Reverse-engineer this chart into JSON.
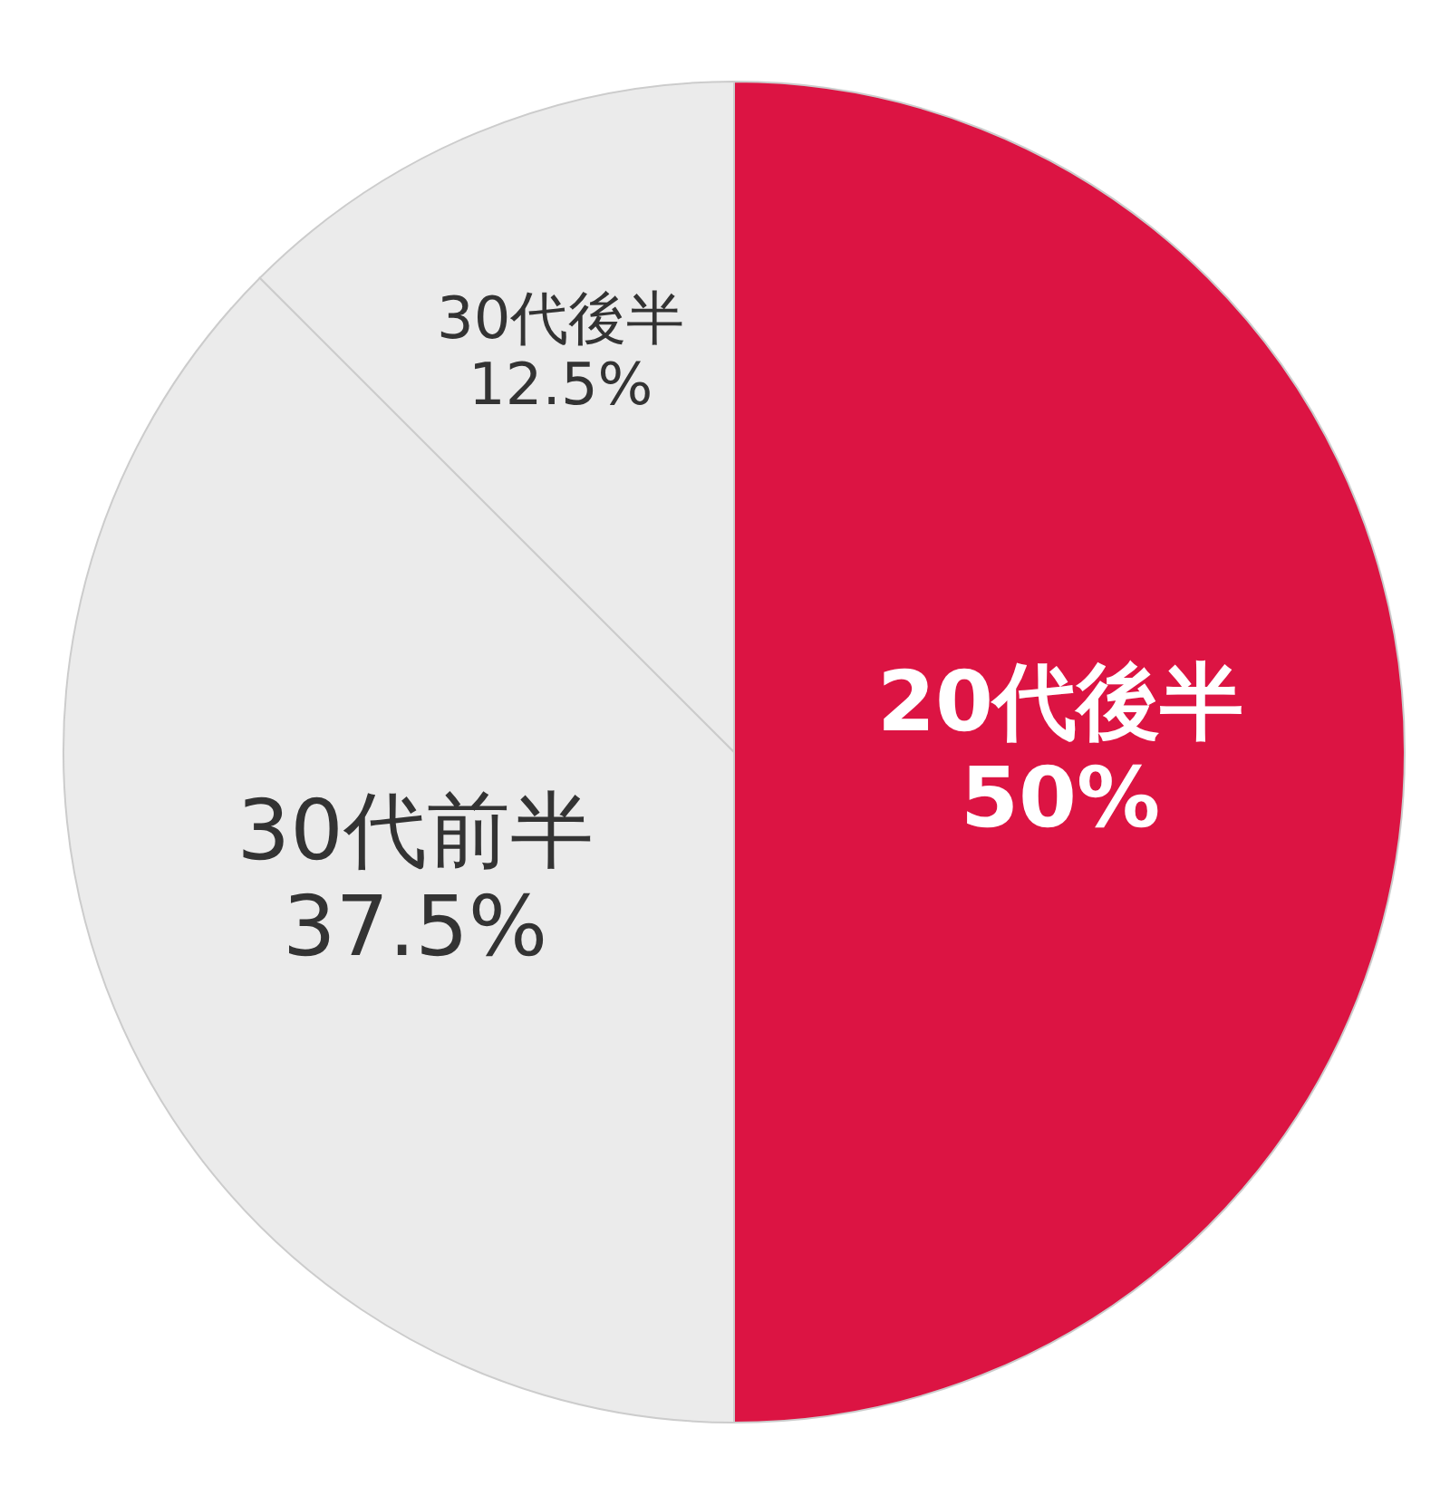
{
  "chart_data": {
    "type": "pie",
    "categories": [
      "20代後半",
      "30代前半",
      "30代後半"
    ],
    "values": [
      50,
      37.5,
      12.5
    ],
    "colors": [
      "#dc1443",
      "#ebebeb",
      "#ebebeb"
    ],
    "value_labels": [
      "50%",
      "37.5%",
      "12.5%"
    ],
    "legend": false
  }
}
